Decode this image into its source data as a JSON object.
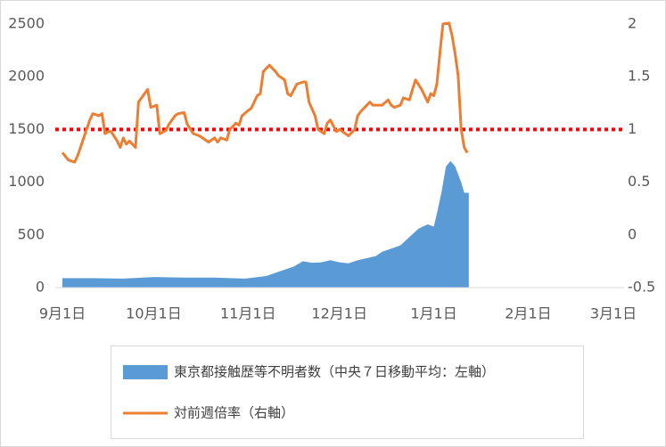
{
  "chart_data": {
    "type": "area-line",
    "xlim": [
      0,
      181
    ],
    "xticks": [
      {
        "value": 0,
        "label": "9月1日"
      },
      {
        "value": 30,
        "label": "10月1日"
      },
      {
        "value": 61,
        "label": "11月1日"
      },
      {
        "value": 91,
        "label": "12月1日"
      },
      {
        "value": 122,
        "label": "1月1日"
      },
      {
        "value": 153,
        "label": "2月1日"
      },
      {
        "value": 181,
        "label": "3月1日"
      }
    ],
    "ylim": [
      0,
      2500
    ],
    "yticks": [
      0,
      500,
      1000,
      1500,
      2000,
      2500
    ],
    "y2lim": [
      -0.5,
      2
    ],
    "y2ticks": [
      -0.5,
      0,
      0.5,
      1,
      1.5,
      2
    ],
    "reference_line": {
      "value": 1,
      "axis": "y2",
      "color": "#ff0000"
    },
    "legend": "bottom",
    "series": [
      {
        "name": "東京都接触歴等不明者数（中央７日移動平均：左軸）",
        "color": "#5b9bd5",
        "kind": "area",
        "axis": "y",
        "x": [
          0,
          10,
          20,
          30,
          40,
          50,
          60,
          67,
          70,
          73,
          76,
          79,
          82,
          85,
          88,
          91,
          94,
          97,
          100,
          103,
          105,
          108,
          111,
          114,
          117,
          120,
          122,
          123,
          124.5,
          126,
          127.5,
          129,
          131,
          132,
          133.5
        ],
        "values": [
          90,
          90,
          85,
          100,
          95,
          95,
          85,
          110,
          140,
          170,
          200,
          250,
          235,
          240,
          260,
          240,
          230,
          260,
          280,
          300,
          340,
          370,
          400,
          480,
          560,
          600,
          580,
          700,
          900,
          1150,
          1200,
          1150,
          1000,
          900,
          900
        ]
      },
      {
        "name": "対前週倍率（右軸）",
        "color": "#ed7d31",
        "kind": "line",
        "axis": "y2",
        "x": [
          0,
          2,
          4,
          5,
          7,
          9,
          10,
          12,
          13,
          14,
          15,
          16,
          18,
          19,
          20,
          21,
          22,
          24,
          25,
          27,
          28,
          29,
          31,
          32,
          34,
          35,
          37,
          38,
          40,
          41,
          43,
          45,
          46,
          48,
          50,
          51,
          52,
          54,
          55,
          57,
          58,
          59,
          61,
          62,
          64,
          65,
          66,
          68,
          70,
          71,
          73,
          74,
          75,
          77,
          79,
          80,
          81,
          83,
          84,
          86,
          87,
          88,
          90,
          91,
          93,
          94,
          96,
          97,
          98,
          100,
          101,
          102,
          104,
          105,
          107,
          108,
          109,
          111,
          112,
          114,
          115,
          116,
          118,
          119,
          120,
          121,
          122,
          123,
          124,
          125,
          127,
          128,
          129,
          130,
          131,
          132,
          133
        ],
        "values": [
          0.78,
          0.71,
          0.69,
          0.75,
          0.92,
          1.09,
          1.15,
          1.13,
          1.15,
          0.96,
          0.98,
          0.98,
          0.89,
          0.83,
          0.92,
          0.86,
          0.89,
          0.83,
          1.26,
          1.34,
          1.38,
          1.21,
          1.23,
          0.96,
          0.99,
          1.05,
          1.13,
          1.15,
          1.16,
          1.05,
          0.96,
          0.94,
          0.92,
          0.88,
          0.92,
          0.88,
          0.92,
          0.9,
          1.0,
          1.06,
          1.04,
          1.13,
          1.18,
          1.2,
          1.32,
          1.34,
          1.55,
          1.61,
          1.55,
          1.51,
          1.47,
          1.34,
          1.32,
          1.43,
          1.45,
          1.45,
          1.26,
          1.13,
          1.0,
          0.96,
          1.06,
          1.09,
          0.98,
          1.0,
          0.96,
          0.94,
          1.0,
          1.13,
          1.17,
          1.23,
          1.26,
          1.23,
          1.23,
          1.23,
          1.28,
          1.23,
          1.21,
          1.23,
          1.3,
          1.28,
          1.38,
          1.47,
          1.38,
          1.32,
          1.26,
          1.34,
          1.32,
          1.43,
          1.72,
          2.0,
          2.01,
          1.89,
          1.72,
          1.51,
          1.0,
          0.83,
          0.78
        ]
      }
    ]
  }
}
